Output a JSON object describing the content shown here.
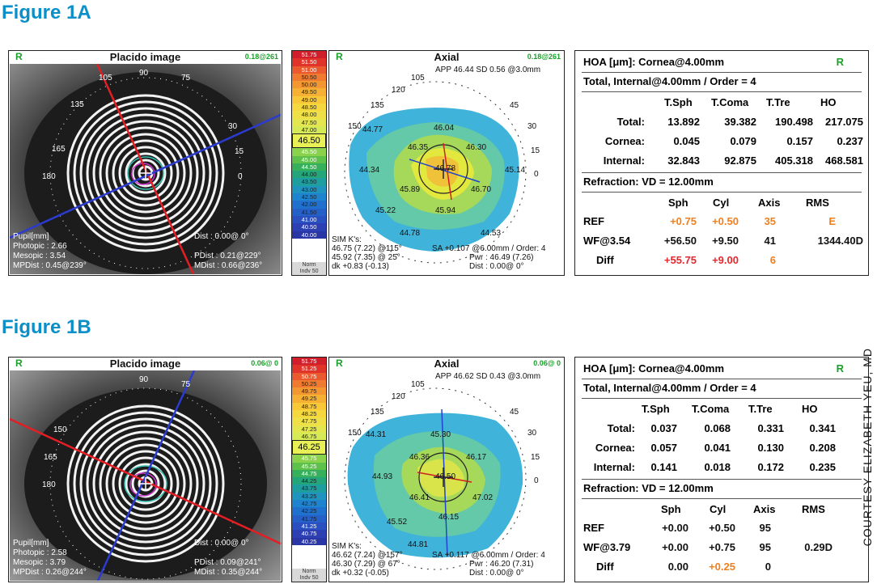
{
  "figures": [
    {
      "title": "Figure 1A",
      "placido": {
        "r": "R",
        "title": "Placido image",
        "value": "0.18@261",
        "pupil_label": "Pupil[mm]",
        "photopic": "Photopic : 2.66",
        "mesopic": "Mesopic : 3.54",
        "mpdist": "MPDist : 0.45@239°",
        "dist": "Dist : 0.00@ 0°",
        "pdist": "PDist : 0.21@229°",
        "mdist": "MDist : 0.66@236°",
        "angles": [
          "105",
          "90",
          "75",
          "135",
          "30",
          "165",
          "15",
          "180",
          "0"
        ]
      },
      "scale": {
        "values": [
          "51.75",
          "51.50",
          "51.00",
          "50.50",
          "50.00",
          "49.50",
          "49.00",
          "48.50",
          "48.00",
          "47.50",
          "47.00"
        ],
        "selected": "46.50",
        "values2": [
          "45.50",
          "45.00",
          "44.50",
          "44.00",
          "43.50",
          "43.00",
          "42.50",
          "42.00",
          "41.50",
          "41.00",
          "40.50",
          "40.00"
        ],
        "foot1": "Norm",
        "foot2": "Indv 50"
      },
      "axial": {
        "r": "R",
        "title": "Axial",
        "value": "0.18@261",
        "app": "APP 46.44  SD 0.56  @3.0mm",
        "angles": [
          "105",
          "90",
          "75",
          "120",
          "135",
          "45",
          "150",
          "30",
          "165",
          "15",
          "180",
          "0"
        ],
        "readings": [
          "44.77",
          "46.04",
          "46.35",
          "46.30",
          "44.34",
          "46.78",
          "45.14",
          "45.89",
          "46.70",
          "45.22",
          "45.94",
          "44.78",
          "44.53"
        ],
        "sim": "SIM K's:",
        "k1": "46.75 (7.22) @115°",
        "k2": "45.92 (7.35) @ 25°",
        "dk": "dk +0.83 (-0.13)",
        "sa": "SA +0.107 @6.00mm / Order: 4",
        "pwr": "Pwr : 46.49 (7.26)",
        "dist": "Dist : 0.00@ 0°"
      },
      "hoa": {
        "title": "HOA [μm]: Cornea@4.00mm",
        "r": "R",
        "subtitle": "Total, Internal@4.00mm / Order = 4",
        "headers": [
          "T.Sph",
          "T.Coma",
          "T.Tre",
          "HO"
        ],
        "rows": [
          {
            "label": "Total:",
            "vals": [
              "13.892",
              "39.382",
              "190.498",
              "217.075"
            ]
          },
          {
            "label": "Cornea:",
            "vals": [
              "0.045",
              "0.079",
              "0.157",
              "0.237"
            ]
          },
          {
            "label": "Internal:",
            "vals": [
              "32.843",
              "92.875",
              "405.318",
              "468.581"
            ]
          }
        ],
        "refraction": "Refraction: VD = 12.00mm",
        "rheaders": [
          "Sph",
          "Cyl",
          "Axis",
          "RMS"
        ],
        "rrows": [
          {
            "label": "REF",
            "vals": [
              "+0.75",
              "+0.50",
              "35",
              "E"
            ],
            "colors": [
              "#f07f1e",
              "#f07f1e",
              "#f07f1e",
              "#f07f1e"
            ]
          },
          {
            "label": "WF@3.54",
            "vals": [
              "+56.50",
              "+9.50",
              "41",
              "1344.40D"
            ],
            "colors": [
              "#111111",
              "#111111",
              "#111111",
              "#111111"
            ]
          },
          {
            "label": "Diff",
            "vals": [
              "+55.75",
              "+9.00",
              "6",
              ""
            ],
            "colors": [
              "#e8262b",
              "#e8262b",
              "#f07f1e",
              "#111111"
            ]
          }
        ]
      }
    },
    {
      "title": "Figure 1B",
      "placido": {
        "r": "R",
        "title": "Placido image",
        "value": "0.06@ 0",
        "pupil_label": "Pupil[mm]",
        "photopic": "Photopic : 2.58",
        "mesopic": "Mesopic : 3.79",
        "mpdist": "MPDist : 0.26@244°",
        "dist": "Dist : 0.00@ 0°",
        "pdist": "PDist : 0.09@241°",
        "mdist": "MDist : 0.35@244°",
        "angles": [
          "90",
          "75",
          "150",
          "165",
          "180"
        ]
      },
      "scale": {
        "values": [
          "51.75",
          "51.25",
          "50.75",
          "50.25",
          "49.75",
          "49.25",
          "48.75",
          "48.25",
          "47.75",
          "47.25",
          "46.75"
        ],
        "selected": "46.25",
        "values2": [
          "45.75",
          "45.25",
          "44.75",
          "44.25",
          "43.75",
          "43.25",
          "42.75",
          "42.25",
          "41.75",
          "41.25",
          "40.75",
          "40.25"
        ],
        "foot1": "Norm",
        "foot2": "Indv 50"
      },
      "axial": {
        "r": "R",
        "title": "Axial",
        "value": "0.06@ 0",
        "app": "APP 46.62  SD 0.43  @3.0mm",
        "angles": [
          "105",
          "90",
          "75",
          "120",
          "135",
          "45",
          "150",
          "30",
          "165",
          "15",
          "180",
          "0"
        ],
        "readings": [
          "44.31",
          "45.30",
          "46.36",
          "46.17",
          "44.93",
          "46.50",
          "47.02",
          "46.41",
          "45.52",
          "46.15",
          "44.81"
        ],
        "sim": "SIM K's:",
        "k1": "46.62 (7.24) @157°",
        "k2": "46.30 (7.29) @ 67°",
        "dk": "dk +0.32 (-0.05)",
        "sa": "SA +0.117 @6.00mm / Order: 4",
        "pwr": "Pwr : 46.20 (7.31)",
        "dist": "Dist : 0.00@ 0°"
      },
      "hoa": {
        "title": "HOA [μm]: Cornea@4.00mm",
        "r": "R",
        "subtitle": "Total, Internal@4.00mm / Order = 4",
        "headers": [
          "T.Sph",
          "T.Coma",
          "T.Tre",
          "HO"
        ],
        "rows": [
          {
            "label": "Total:",
            "vals": [
              "0.037",
              "0.068",
              "0.331",
              "0.341"
            ]
          },
          {
            "label": "Cornea:",
            "vals": [
              "0.057",
              "0.041",
              "0.130",
              "0.208"
            ]
          },
          {
            "label": "Internal:",
            "vals": [
              "0.141",
              "0.018",
              "0.172",
              "0.235"
            ]
          }
        ],
        "refraction": "Refraction: VD = 12.00mm",
        "rheaders": [
          "Sph",
          "Cyl",
          "Axis",
          "RMS"
        ],
        "rrows": [
          {
            "label": "REF",
            "vals": [
              "+0.00",
              "+0.50",
              "95",
              ""
            ],
            "colors": [
              "#111111",
              "#111111",
              "#111111",
              "#111111"
            ]
          },
          {
            "label": "WF@3.79",
            "vals": [
              "+0.00",
              "+0.75",
              "95",
              "0.29D"
            ],
            "colors": [
              "#111111",
              "#111111",
              "#111111",
              "#111111"
            ]
          },
          {
            "label": "Diff",
            "vals": [
              "0.00",
              "+0.25",
              "0",
              ""
            ],
            "colors": [
              "#111111",
              "#f07f1e",
              "#111111",
              "#111111"
            ]
          }
        ]
      }
    }
  ],
  "credit": "COURTESY ELIZABETH YEU, MD"
}
